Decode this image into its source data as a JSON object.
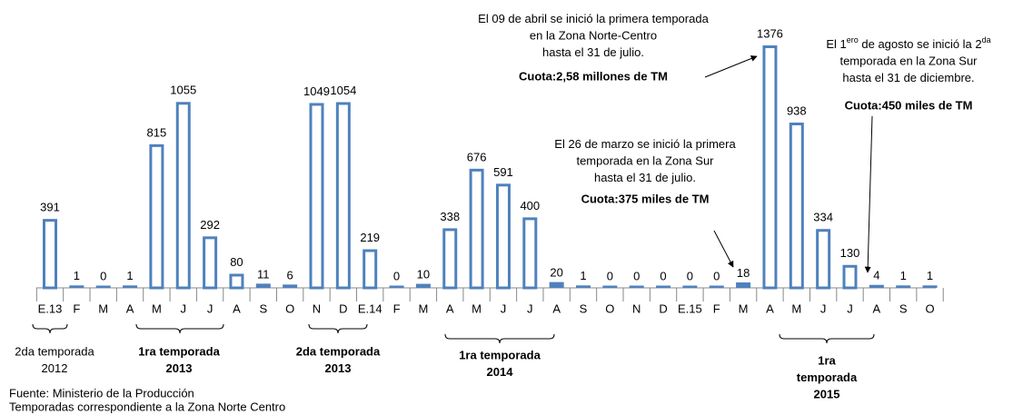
{
  "chart_data": {
    "type": "bar",
    "categories": [
      "E.13",
      "F",
      "M",
      "A",
      "M",
      "J",
      "J",
      "A",
      "S",
      "O",
      "N",
      "D",
      "E.14",
      "F",
      "M",
      "A",
      "M",
      "J",
      "J",
      "A",
      "S",
      "O",
      "N",
      "D",
      "E.15",
      "F",
      "M",
      "A",
      "M",
      "J",
      "J",
      "A",
      "S",
      "O"
    ],
    "values": [
      391,
      1,
      0,
      1,
      815,
      1055,
      292,
      80,
      11,
      6,
      1049,
      1054,
      219,
      0,
      10,
      338,
      676,
      591,
      400,
      20,
      1,
      0,
      0,
      0,
      0,
      0,
      18,
      1376,
      938,
      334,
      130,
      4,
      1,
      1
    ],
    "color": "#4f81bd",
    "annotations": [
      {
        "lines": [
          [
            "El 09 de abril se inició la primera temporada"
          ],
          [
            "en la Zona  Norte-Centro"
          ],
          [
            "hasta el 31 de julio."
          ]
        ],
        "quota": "Cuota:2,58 millones de TM"
      },
      {
        "lines": [
          [
            "El 26 de marzo se inició la primera"
          ],
          [
            "temporada en la Zona Sur"
          ],
          [
            "hasta el 31 de julio."
          ]
        ],
        "quota": "Cuota:375 miles de TM"
      },
      {
        "lines": [
          [
            "El 1",
            "ero",
            " de agosto se inició la 2",
            "da"
          ],
          [
            "temporada en la Zona  Sur"
          ],
          [
            "hasta el 31 de diciembre."
          ]
        ],
        "quota": "Cuota:450 miles de TM"
      }
    ],
    "quota_color": "#ff0000",
    "seasons": [
      {
        "lines": [
          "2da  temporada",
          "2012"
        ],
        "bold": false
      },
      {
        "lines": [
          "1ra  temporada",
          "2013"
        ],
        "bold": true
      },
      {
        "lines": [
          "2da  temporada",
          "2013"
        ],
        "bold": true
      },
      {
        "lines": [
          "1ra temporada",
          "2014"
        ],
        "bold": true
      },
      {
        "lines": [
          "1ra",
          "temporada",
          "2015"
        ],
        "bold": true
      }
    ],
    "source": [
      "Fuente: Ministerio de la Producción",
      "Temporadas correspondiente a la Zona Norte Centro"
    ]
  }
}
